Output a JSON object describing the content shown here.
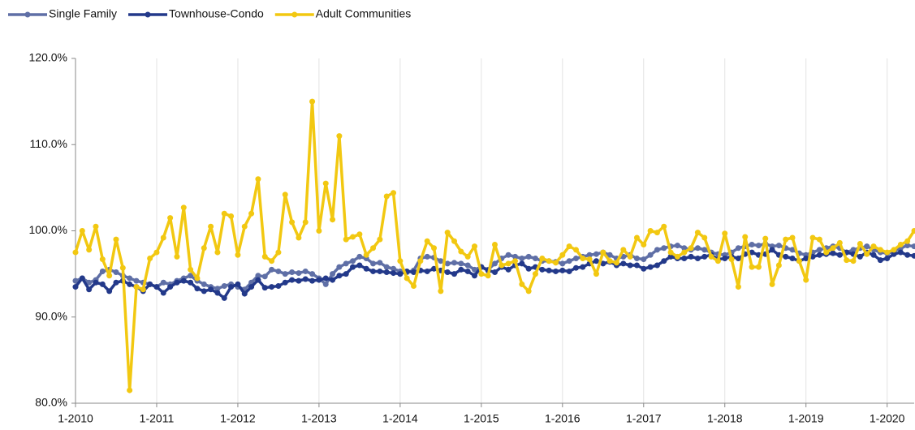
{
  "chart_data": {
    "type": "line",
    "categories": [
      "1-2010",
      null,
      null,
      null,
      null,
      null,
      null,
      null,
      null,
      null,
      null,
      null,
      "1-2011",
      null,
      null,
      null,
      null,
      null,
      null,
      null,
      null,
      null,
      null,
      null,
      "1-2012",
      null,
      null,
      null,
      null,
      null,
      null,
      null,
      null,
      null,
      null,
      null,
      "1-2013",
      null,
      null,
      null,
      null,
      null,
      null,
      null,
      null,
      null,
      null,
      null,
      "1-2014",
      null,
      null,
      null,
      null,
      null,
      null,
      null,
      null,
      null,
      null,
      null,
      "1-2015",
      null,
      null,
      null,
      null,
      null,
      null,
      null,
      null,
      null,
      null,
      null,
      "1-2016",
      null,
      null,
      null,
      null,
      null,
      null,
      null,
      null,
      null,
      null,
      null,
      "1-2017",
      null,
      null,
      null,
      null,
      null,
      null,
      null,
      null,
      null,
      null,
      null,
      "1-2018",
      null,
      null,
      null,
      null,
      null,
      null,
      null,
      null,
      null,
      null,
      null,
      "1-2019",
      null,
      null,
      null,
      null,
      null,
      null,
      null,
      null,
      null,
      null,
      null,
      "1-2020",
      null,
      null,
      null,
      null
    ],
    "series": [
      {
        "name": "Single Family",
        "color": "#5f6fa6",
        "values": [
          94.2,
          94.5,
          94,
          94.3,
          95.3,
          95.5,
          95.2,
          94.8,
          94.5,
          94.2,
          94,
          93.8,
          93.5,
          94,
          93.8,
          94.2,
          94.5,
          94.8,
          94.2,
          93.8,
          93.5,
          93.3,
          93.6,
          93.8,
          93.5,
          93.2,
          94,
          94.8,
          94.7,
          95.5,
          95.3,
          95,
          95.2,
          95.1,
          95.3,
          95,
          94.5,
          93.8,
          95,
          95.8,
          96.2,
          96.5,
          97,
          96.8,
          96.2,
          96.3,
          95.8,
          95.6,
          95.3,
          95.2,
          95.4,
          96.8,
          97,
          96.9,
          96.5,
          96.2,
          96.3,
          96.2,
          96,
          95.5,
          95.8,
          95.5,
          96.2,
          96.8,
          97.2,
          97,
          96.8,
          97,
          96.8,
          96.5,
          96.5,
          96.4,
          96.2,
          96.5,
          96.8,
          97,
          97.2,
          97.3,
          97.5,
          97.2,
          96.8,
          97,
          97.2,
          96.8,
          96.7,
          97.2,
          97.8,
          98,
          98.2,
          98.3,
          98,
          97.8,
          98,
          97.8,
          97.5,
          97.3,
          97.2,
          97.5,
          98,
          98.2,
          98.4,
          98.3,
          98.5,
          98.2,
          98.3,
          98,
          97.8,
          97.4,
          97.2,
          97.5,
          97.8,
          98,
          98.2,
          98,
          97.5,
          97.8,
          98,
          98.2,
          97.8,
          97.5,
          97.4,
          97.6,
          98,
          98.3,
          98.2
        ]
      },
      {
        "name": "Townhouse-Condo",
        "color": "#23398a",
        "values": [
          93.5,
          94.5,
          93.2,
          94,
          93.8,
          93,
          94,
          94.2,
          93.8,
          93.5,
          93,
          93.8,
          93.5,
          92.8,
          93.5,
          94,
          94.2,
          94,
          93.3,
          93,
          93.2,
          92.8,
          92.2,
          93.5,
          93.8,
          92.7,
          93.5,
          94.3,
          93.4,
          93.5,
          93.6,
          94,
          94.3,
          94.2,
          94.4,
          94.2,
          94.3,
          94.5,
          94.3,
          94.8,
          95,
          95.8,
          96,
          95.6,
          95.3,
          95.3,
          95.2,
          95.1,
          95,
          95.3,
          95.2,
          95.4,
          95.3,
          95.6,
          95.4,
          95.2,
          95,
          95.5,
          95.3,
          94.8,
          95.8,
          95.4,
          95.2,
          95.8,
          95.5,
          96,
          96.2,
          95.6,
          95.8,
          95.5,
          95.4,
          95.3,
          95.4,
          95.3,
          95.7,
          95.8,
          96.2,
          96.5,
          96.2,
          96.4,
          96,
          96.2,
          96,
          96,
          95.6,
          95.8,
          96,
          96.5,
          97,
          96.8,
          96.8,
          97,
          96.8,
          97,
          97.2,
          96.7,
          96.8,
          97,
          96.8,
          97.3,
          97.5,
          97.2,
          97.3,
          97.8,
          97.2,
          97,
          96.8,
          96.5,
          96.8,
          97,
          97.2,
          97.3,
          97.4,
          97.2,
          97.5,
          97.3,
          97,
          97.5,
          97.2,
          96.6,
          96.8,
          97.3,
          97.5,
          97.2,
          97.1
        ]
      },
      {
        "name": "Adult Communities",
        "color": "#f2c811",
        "values": [
          97.5,
          100,
          97.8,
          100.5,
          96.7,
          94.8,
          99,
          95.7,
          81.5,
          93.5,
          93.2,
          96.8,
          97.5,
          99.2,
          101.5,
          97,
          102.7,
          95.5,
          94.5,
          98,
          100.5,
          97.5,
          102,
          101.7,
          97.2,
          100.5,
          102,
          106,
          97,
          96.5,
          97.5,
          104.2,
          101,
          99.2,
          101,
          115,
          100,
          105.5,
          101.3,
          111,
          99,
          99.3,
          99.6,
          97.2,
          98,
          99,
          104,
          104.4,
          96.5,
          94.5,
          93.6,
          96.5,
          98.8,
          98,
          93,
          99.8,
          98.8,
          97.6,
          97,
          98.2,
          95,
          94.8,
          98.4,
          96,
          96.2,
          96.5,
          93.8,
          93,
          95,
          96.8,
          96.5,
          96.3,
          97.2,
          98.2,
          97.8,
          96.8,
          96.7,
          95,
          97.5,
          96.5,
          96.3,
          97.8,
          97,
          99.2,
          98.4,
          100,
          99.8,
          100.5,
          97.5,
          97,
          97.5,
          98,
          99.8,
          99.2,
          97,
          96.5,
          99.7,
          96.7,
          93.5,
          99.3,
          95.8,
          95.8,
          99.1,
          93.8,
          96,
          99,
          99.2,
          96.5,
          94.3,
          99.2,
          99,
          97.5,
          98,
          98.6,
          96.6,
          96.5,
          98.5,
          97.3,
          98.2,
          97.8,
          97.5,
          97.8,
          98.4,
          98.8,
          100
        ]
      }
    ],
    "ylim": [
      80,
      120
    ],
    "yticks": [
      {
        "value": 80,
        "label": "80.0%"
      },
      {
        "value": 90,
        "label": "90.0%"
      },
      {
        "value": 100,
        "label": "100.0%"
      },
      {
        "value": 110,
        "label": "110.0%"
      },
      {
        "value": 120,
        "label": "120.0%"
      }
    ],
    "grid": true,
    "legend": "top-left"
  }
}
